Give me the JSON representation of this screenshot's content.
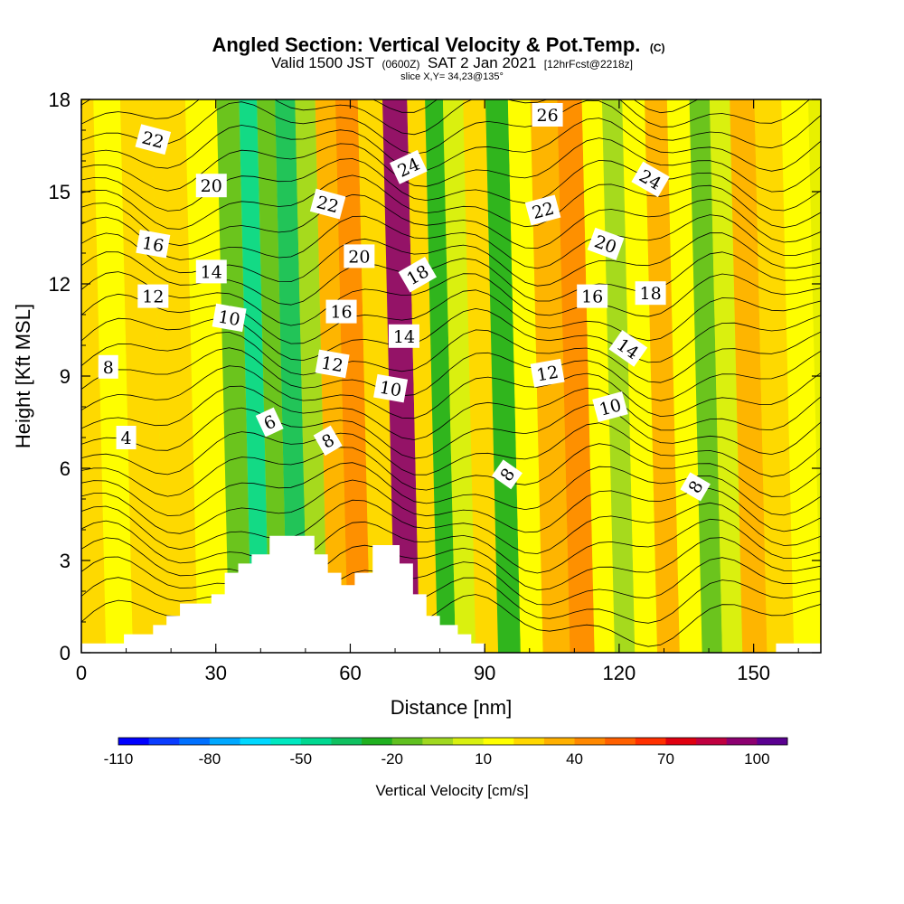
{
  "chart_data": {
    "type": "heatmap",
    "title": {
      "main": "Angled Section: Vertical Velocity & Pot.Temp.",
      "main_units": "(C)",
      "line2_a": "Valid 1500 JST",
      "line2_b": "(0600Z)",
      "line2_c": "SAT 2 Jan 2021",
      "line2_d": "[12hrFcst@2218z]",
      "line3": "slice X,Y= 34,23@135°"
    },
    "xlabel": "Distance [nm]",
    "ylabel": "Height [Kft MSL]",
    "xlim": [
      0,
      165
    ],
    "ylim": [
      0,
      18
    ],
    "x_ticks": [
      "0",
      "30",
      "60",
      "90",
      "120",
      "150"
    ],
    "y_ticks": [
      "0",
      "3",
      "6",
      "9",
      "12",
      "15",
      "18"
    ],
    "colorbar": {
      "label": "Vertical Velocity [cm/s]",
      "tick_labels": [
        "-110",
        "-80",
        "-50",
        "-20",
        "10",
        "40",
        "70",
        "100"
      ],
      "colors": [
        "#0000ff",
        "#0a3cff",
        "#0070ff",
        "#00a8ff",
        "#00d8ff",
        "#00e8c0",
        "#00d890",
        "#10c060",
        "#20b020",
        "#60c020",
        "#a0d820",
        "#d8f010",
        "#ffff00",
        "#ffd700",
        "#ffb000",
        "#ff8800",
        "#ff6000",
        "#ff3000",
        "#e00010",
        "#c00040",
        "#8c0070",
        "#5a0090"
      ]
    },
    "velocity_bands": [
      {
        "x": 3,
        "level": 10
      },
      {
        "x": 8,
        "level": 5
      },
      {
        "x": 15,
        "level": 15
      },
      {
        "x": 22,
        "level": 10
      },
      {
        "x": 30,
        "level": 5
      },
      {
        "x": 36,
        "level": -25
      },
      {
        "x": 40,
        "level": -60
      },
      {
        "x": 44,
        "level": -30
      },
      {
        "x": 48,
        "level": -50
      },
      {
        "x": 53,
        "level": -20
      },
      {
        "x": 57,
        "level": 20
      },
      {
        "x": 62,
        "level": 30
      },
      {
        "x": 67,
        "level": 15
      },
      {
        "x": 73,
        "level": 80
      },
      {
        "x": 78,
        "level": 10
      },
      {
        "x": 81,
        "level": -40
      },
      {
        "x": 86,
        "level": -5
      },
      {
        "x": 90,
        "level": 15
      },
      {
        "x": 96,
        "level": -35
      },
      {
        "x": 100,
        "level": 0
      },
      {
        "x": 106,
        "level": 20
      },
      {
        "x": 112,
        "level": 35
      },
      {
        "x": 117,
        "level": 0
      },
      {
        "x": 121,
        "level": -20
      },
      {
        "x": 126,
        "level": 5
      },
      {
        "x": 131,
        "level": 20
      },
      {
        "x": 136,
        "level": 5
      },
      {
        "x": 141,
        "level": -25
      },
      {
        "x": 145,
        "level": -10
      },
      {
        "x": 150,
        "level": 20
      },
      {
        "x": 156,
        "level": 15
      },
      {
        "x": 162,
        "level": 5
      }
    ],
    "terrain_kft": [
      {
        "x": 0,
        "h": 0.3
      },
      {
        "x": 9.5,
        "h": 0.3
      },
      {
        "x": 9.5,
        "h": 0.6
      },
      {
        "x": 16,
        "h": 0.6
      },
      {
        "x": 16,
        "h": 0.9
      },
      {
        "x": 19,
        "h": 0.9
      },
      {
        "x": 19,
        "h": 1.2
      },
      {
        "x": 22,
        "h": 1.2
      },
      {
        "x": 22,
        "h": 1.6
      },
      {
        "x": 29,
        "h": 1.6
      },
      {
        "x": 29,
        "h": 1.9
      },
      {
        "x": 32,
        "h": 1.9
      },
      {
        "x": 32,
        "h": 2.6
      },
      {
        "x": 35,
        "h": 2.6
      },
      {
        "x": 35,
        "h": 2.9
      },
      {
        "x": 38,
        "h": 2.9
      },
      {
        "x": 38,
        "h": 3.2
      },
      {
        "x": 42,
        "h": 3.2
      },
      {
        "x": 42,
        "h": 3.8
      },
      {
        "x": 52,
        "h": 3.8
      },
      {
        "x": 52,
        "h": 3.2
      },
      {
        "x": 55,
        "h": 3.2
      },
      {
        "x": 55,
        "h": 2.6
      },
      {
        "x": 58,
        "h": 2.6
      },
      {
        "x": 58,
        "h": 2.2
      },
      {
        "x": 61,
        "h": 2.2
      },
      {
        "x": 61,
        "h": 2.6
      },
      {
        "x": 65,
        "h": 2.6
      },
      {
        "x": 65,
        "h": 3.5
      },
      {
        "x": 71,
        "h": 3.5
      },
      {
        "x": 71,
        "h": 2.9
      },
      {
        "x": 74,
        "h": 2.9
      },
      {
        "x": 74,
        "h": 1.9
      },
      {
        "x": 77,
        "h": 1.9
      },
      {
        "x": 77,
        "h": 1.2
      },
      {
        "x": 80,
        "h": 1.2
      },
      {
        "x": 80,
        "h": 0.9
      },
      {
        "x": 84,
        "h": 0.9
      },
      {
        "x": 84,
        "h": 0.6
      },
      {
        "x": 87,
        "h": 0.6
      },
      {
        "x": 87,
        "h": 0.3
      },
      {
        "x": 90,
        "h": 0.3
      },
      {
        "x": 90,
        "h": 0.0
      },
      {
        "x": 155,
        "h": 0.0
      },
      {
        "x": 155,
        "h": 0.3
      },
      {
        "x": 165,
        "h": 0.3
      }
    ],
    "contour_labels": [
      {
        "text": "22",
        "x": 16,
        "y": 16.7,
        "rot": 15
      },
      {
        "text": "20",
        "x": 29,
        "y": 15.2,
        "rot": 0
      },
      {
        "text": "16",
        "x": 16,
        "y": 13.3,
        "rot": 10
      },
      {
        "text": "14",
        "x": 29,
        "y": 12.4,
        "rot": 0
      },
      {
        "text": "12",
        "x": 16,
        "y": 11.6,
        "rot": 0
      },
      {
        "text": "10",
        "x": 33,
        "y": 10.9,
        "rot": 10
      },
      {
        "text": "8",
        "x": 6,
        "y": 9.3,
        "rot": 0
      },
      {
        "text": "4",
        "x": 10,
        "y": 7.0,
        "rot": 0
      },
      {
        "text": "6",
        "x": 42,
        "y": 7.5,
        "rot": -25
      },
      {
        "text": "8",
        "x": 55,
        "y": 6.9,
        "rot": -30
      },
      {
        "text": "22",
        "x": 55,
        "y": 14.6,
        "rot": 15
      },
      {
        "text": "20",
        "x": 62,
        "y": 12.9,
        "rot": 0
      },
      {
        "text": "16",
        "x": 58,
        "y": 11.1,
        "rot": 0
      },
      {
        "text": "12",
        "x": 56,
        "y": 9.4,
        "rot": 10
      },
      {
        "text": "24",
        "x": 73,
        "y": 15.8,
        "rot": -25
      },
      {
        "text": "18",
        "x": 75,
        "y": 12.3,
        "rot": -30
      },
      {
        "text": "14",
        "x": 72,
        "y": 10.3,
        "rot": 0
      },
      {
        "text": "10",
        "x": 69,
        "y": 8.6,
        "rot": 10
      },
      {
        "text": "26",
        "x": 104,
        "y": 17.5,
        "rot": 0
      },
      {
        "text": "22",
        "x": 103,
        "y": 14.4,
        "rot": -15
      },
      {
        "text": "12",
        "x": 104,
        "y": 9.1,
        "rot": -10
      },
      {
        "text": "8",
        "x": 95,
        "y": 5.8,
        "rot": -55
      },
      {
        "text": "24",
        "x": 127,
        "y": 15.4,
        "rot": 30
      },
      {
        "text": "20",
        "x": 117,
        "y": 13.3,
        "rot": 20
      },
      {
        "text": "16",
        "x": 114,
        "y": 11.6,
        "rot": 0
      },
      {
        "text": "18",
        "x": 127,
        "y": 11.7,
        "rot": 0
      },
      {
        "text": "14",
        "x": 122,
        "y": 9.9,
        "rot": 35
      },
      {
        "text": "10",
        "x": 118,
        "y": 8.0,
        "rot": -15
      },
      {
        "text": "8",
        "x": 137,
        "y": 5.4,
        "rot": -60
      }
    ]
  }
}
